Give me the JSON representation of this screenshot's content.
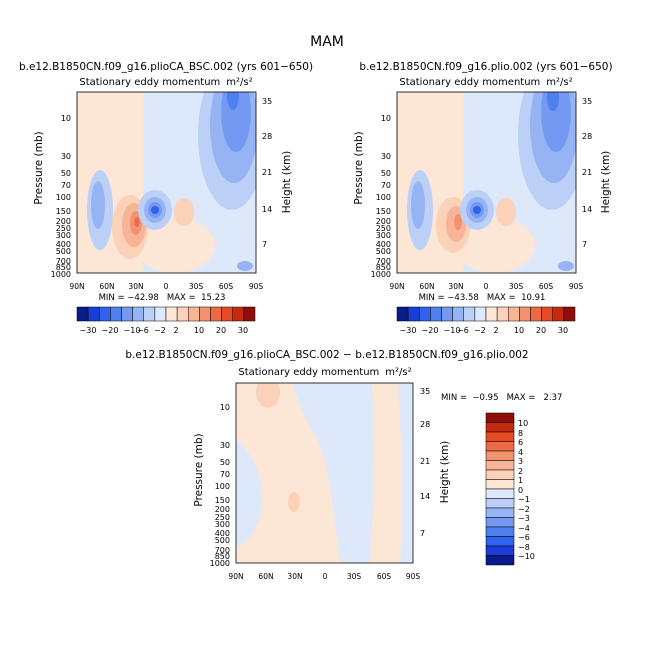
{
  "figure": {
    "title": "MAM"
  },
  "colors": {
    "neg10": "#0a1b8c",
    "neg8": "#1a3dd8",
    "neg6": "#2f62ee",
    "neg4": "#4f80f0",
    "neg3": "#7399f2",
    "neg2": "#96b4f4",
    "neg1": "#bcd0f7",
    "zero_neg": "#dde8fb",
    "zero_pos": "#fce6d6",
    "pos1": "#fbd1b8",
    "pos2": "#f7b497",
    "pos3": "#f3926e",
    "pos4": "#ee6a45",
    "pos6": "#e64a22",
    "pos8": "#c42a10",
    "pos10": "#8e0f07"
  },
  "chart_data": [
    {
      "type": "heatmap",
      "id": "top-left",
      "title": "b.e12.B1850CN.f09_g16.plioCA_BSC.002 (yrs 601−650)",
      "subtitle": "Stationary eddy momentum",
      "units": "m²/s²",
      "ylabel": "Pressure (mb)",
      "ylabel_right": "Height (km)",
      "xticks": [
        "90N",
        "60N",
        "30N",
        "0",
        "30S",
        "60S",
        "90S"
      ],
      "yticks": [
        "10",
        "30",
        "50",
        "70",
        "100",
        "150",
        "200",
        "250",
        "300",
        "400",
        "500",
        "700",
        "850",
        "1000"
      ],
      "yticks_right": [
        "35",
        "28",
        "21",
        "14",
        "7"
      ],
      "min_label": "MIN = −42.98   MAX =  15.23",
      "min": -42.98,
      "max": 15.23
    },
    {
      "type": "heatmap",
      "id": "top-right",
      "title": "b.e12.B1850CN.f09_g16.plio.002 (yrs 601−650)",
      "subtitle": "Stationary eddy momentum",
      "units": "m²/s²",
      "ylabel": "Pressure (mb)",
      "ylabel_right": "Height (km)",
      "xticks": [
        "90N",
        "60N",
        "30N",
        "0",
        "30S",
        "60S",
        "90S"
      ],
      "yticks": [
        "10",
        "30",
        "50",
        "70",
        "100",
        "150",
        "200",
        "250",
        "300",
        "400",
        "500",
        "700",
        "850",
        "1000"
      ],
      "yticks_right": [
        "35",
        "28",
        "21",
        "14",
        "7"
      ],
      "min_label": "MIN = −43.58   MAX =  10.91",
      "min": -43.58,
      "max": 10.91
    },
    {
      "type": "heatmap",
      "id": "bottom",
      "title": "b.e12.B1850CN.f09_g16.plioCA_BSC.002 − b.e12.B1850CN.f09_g16.plio.002",
      "subtitle": "Stationary eddy momentum",
      "units": "m²/s²",
      "ylabel": "Pressure (mb)",
      "ylabel_right": "Height (km)",
      "xticks": [
        "90N",
        "60N",
        "30N",
        "0",
        "30S",
        "60S",
        "90S"
      ],
      "yticks": [
        "10",
        "30",
        "50",
        "70",
        "100",
        "150",
        "200",
        "250",
        "300",
        "400",
        "500",
        "700",
        "850",
        "1000"
      ],
      "yticks_right": [
        "35",
        "28",
        "21",
        "14",
        "7"
      ],
      "min_label": "MIN =  −0.95   MAX =   2.37",
      "min": -0.95,
      "max": 2.37
    }
  ],
  "colorbar_top": {
    "labels": [
      "−30",
      "−20",
      "−10",
      "−6",
      "−2",
      "2",
      "10",
      "20",
      "30"
    ]
  },
  "colorbar_bottom": {
    "labels": [
      "10",
      "8",
      "6",
      "4",
      "3",
      "2",
      "1",
      "0",
      "−1",
      "−2",
      "−3",
      "−4",
      "−6",
      "−8",
      "−10"
    ]
  }
}
